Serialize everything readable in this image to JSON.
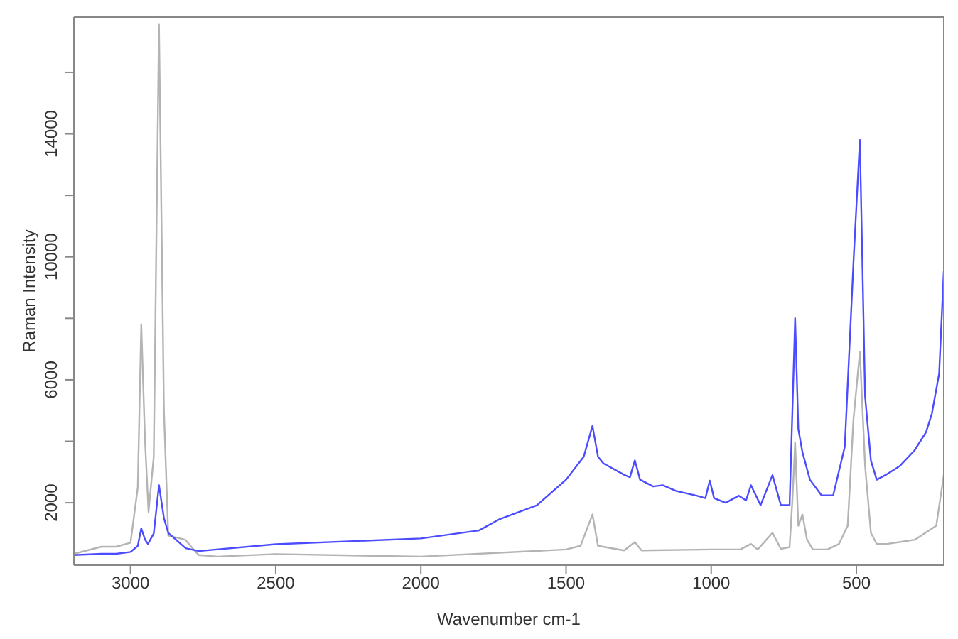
{
  "chart_data": {
    "type": "line",
    "xlabel": "Wavenumber cm-1",
    "ylabel": "Raman Intensity",
    "xlim": [
      3195,
      199
    ],
    "ylim": [
      -30,
      17800
    ],
    "xticks": [
      3000,
      2500,
      2000,
      1500,
      1000,
      500
    ],
    "yticks": [
      2000,
      {
        "value": 4000,
        "label": null
      },
      6000,
      {
        "value": 8000,
        "label": null
      },
      10000,
      {
        "value": 12000,
        "label": null
      },
      14000,
      {
        "value": 16000,
        "label": null
      }
    ],
    "marker": "none",
    "line_style": "solid",
    "series": [
      {
        "color": "#b4b4b4",
        "x": [
          3195,
          3100,
          3050,
          3000,
          2975,
          2963,
          2950,
          2938,
          2920,
          2902,
          2885,
          2870,
          2812,
          2778,
          2765,
          2700,
          2500,
          2000,
          1500,
          1450,
          1409,
          1390,
          1300,
          1263,
          1240,
          1000,
          900,
          863,
          840,
          789,
          760,
          730,
          720,
          711,
          700,
          686,
          670,
          650,
          600,
          560,
          530,
          510,
          488,
          470,
          450,
          430,
          395,
          298,
          225,
          199
        ],
        "values": [
          340,
          570,
          570,
          700,
          2500,
          7800,
          4000,
          1700,
          3500,
          17550,
          5000,
          930,
          800,
          430,
          300,
          250,
          330,
          250,
          480,
          600,
          1620,
          600,
          450,
          720,
          450,
          480,
          480,
          660,
          480,
          1020,
          500,
          560,
          2150,
          3960,
          1250,
          1620,
          800,
          480,
          480,
          660,
          1250,
          4720,
          6900,
          3200,
          1020,
          660,
          660,
          800,
          1250,
          2900
        ]
      },
      {
        "color": "#4c4cff",
        "x": [
          3195,
          3100,
          3050,
          3000,
          2975,
          2963,
          2950,
          2940,
          2920,
          2902,
          2885,
          2870,
          2810,
          2765,
          2500,
          2000,
          1800,
          1728,
          1600,
          1500,
          1439,
          1409,
          1390,
          1371,
          1298,
          1280,
          1263,
          1245,
          1200,
          1167,
          1120,
          1050,
          1020,
          1005,
          990,
          950,
          905,
          880,
          863,
          830,
          789,
          760,
          730,
          711,
          700,
          686,
          660,
          620,
          580,
          540,
          510,
          488,
          470,
          450,
          430,
          400,
          350,
          300,
          260,
          240,
          215,
          199
        ],
        "values": [
          300,
          340,
          340,
          400,
          600,
          1170,
          800,
          660,
          1000,
          2570,
          1500,
          1020,
          520,
          430,
          650,
          840,
          1100,
          1470,
          1920,
          2750,
          3500,
          4500,
          3500,
          3280,
          2900,
          2830,
          3380,
          2750,
          2530,
          2570,
          2380,
          2230,
          2150,
          2720,
          2150,
          2000,
          2230,
          2080,
          2570,
          1920,
          2900,
          1920,
          1920,
          8000,
          4400,
          3650,
          2750,
          2240,
          2240,
          3820,
          9830,
          13800,
          5460,
          3370,
          2750,
          2900,
          3200,
          3700,
          4300,
          4900,
          6200,
          9530
        ]
      }
    ]
  }
}
